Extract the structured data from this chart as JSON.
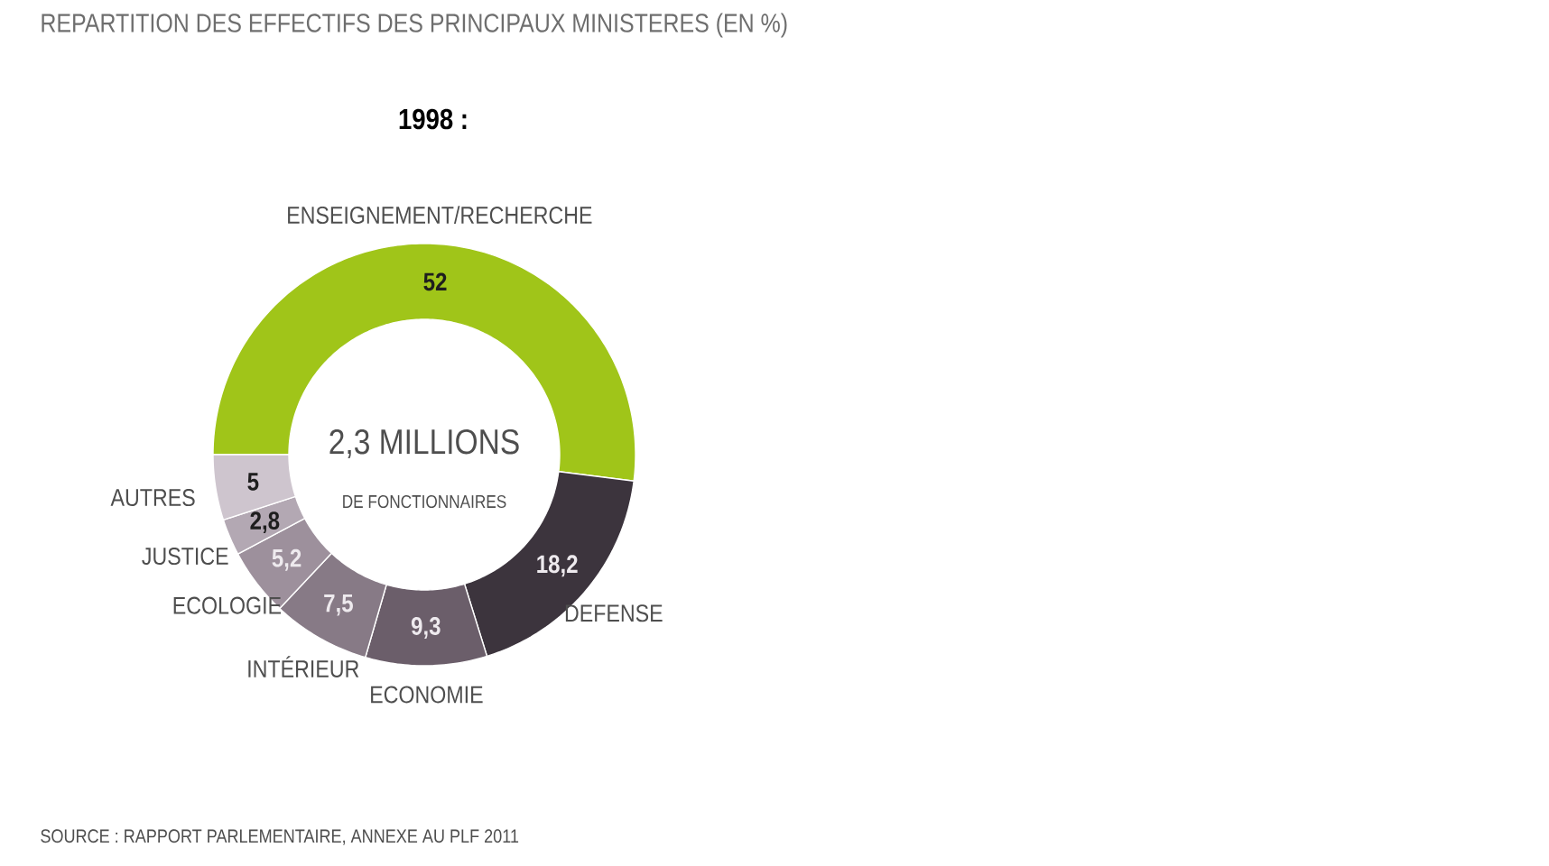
{
  "chart_data": {
    "type": "donut",
    "title": "REPARTITION DES EFFECTIFS DES PRINCIPAUX MINISTERES (EN %)",
    "subtitle": "1998 :",
    "categories": [
      "ENSEIGNEMENT/RECHERCHE",
      "DEFENSE",
      "ECONOMIE",
      "INTÉRIEUR",
      "ECOLOGIE",
      "JUSTICE",
      "AUTRES"
    ],
    "values": [
      52,
      18.2,
      9.3,
      7.5,
      5.2,
      2.8,
      5
    ],
    "colors": [
      "#a0c519",
      "#3c343d",
      "#6b5e6a",
      "#877a86",
      "#9d909c",
      "#b3a8b3",
      "#cec5ce"
    ],
    "value_labels": [
      "52",
      "18,2",
      "9,3",
      "7,5",
      "5,2",
      "2,8",
      "5"
    ],
    "annotations": [
      "2,3 MILLIONS",
      "DE FONCTIONNAIRES",
      "SOURCE : RAPPORT PARLEMENTAIRE, ANNEXE AU PLF 2011"
    ]
  }
}
